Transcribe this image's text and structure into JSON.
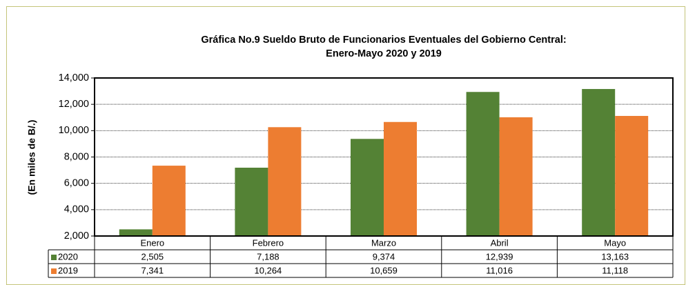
{
  "chart_data": {
    "type": "bar",
    "title": [
      "Gráfica No.9 Sueldo Bruto de Funcionarios Eventuales del  Gobierno Central:",
      "Enero-Mayo 2020 y 2019"
    ],
    "y_label": "(En miles de B/.)",
    "categories": [
      "Enero",
      "Febrero",
      "Marzo",
      "Abril",
      "Mayo"
    ],
    "series": [
      {
        "name": "2020",
        "color": "#548235",
        "values": [
          2505,
          7188,
          9374,
          12939,
          13163
        ],
        "value_labels": [
          "2,505",
          "7,188",
          "9,374",
          "12,939",
          "13,163"
        ]
      },
      {
        "name": "2019",
        "color": "#ed7d31",
        "values": [
          7341,
          10264,
          10659,
          11016,
          11118
        ],
        "value_labels": [
          "7,341",
          "10,264",
          "10,659",
          "11,016",
          "11,118"
        ]
      }
    ],
    "ylim": [
      2000,
      14000
    ],
    "yticks": [
      {
        "value": 2000,
        "label": "2,000"
      },
      {
        "value": 4000,
        "label": "4,000"
      },
      {
        "value": 6000,
        "label": "6,000"
      },
      {
        "value": 8000,
        "label": "8,000"
      },
      {
        "value": 10000,
        "label": "10,000"
      },
      {
        "value": 12000,
        "label": "12,000"
      },
      {
        "value": 14000,
        "label": "14,000"
      }
    ],
    "grid": true
  }
}
